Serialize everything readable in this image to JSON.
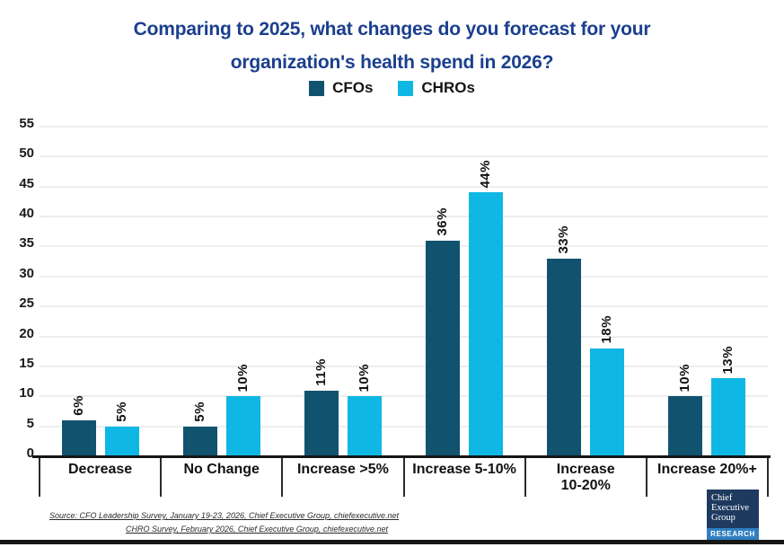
{
  "title": {
    "line1": "Comparing to 2025, what changes do you forecast for your",
    "line2": "organization's health spend in 2026?"
  },
  "chart_data": {
    "type": "bar",
    "title": "Comparing to 2025, what changes do you forecast for your organization's health spend in 2026?",
    "categories": [
      "Decrease",
      "No Change",
      "Increase >5%",
      "Increase 5-10%",
      "Increase\n10-20%",
      "Increase 20%+"
    ],
    "series": [
      {
        "name": "CFOs",
        "color": "#11536F",
        "values": [
          6,
          5,
          11,
          36,
          33,
          10
        ],
        "labels": [
          "6%",
          "5%",
          "11%",
          "36%",
          "33%",
          "10%"
        ]
      },
      {
        "name": "CHROs",
        "color": "#0FB8E4",
        "values": [
          5,
          10,
          10,
          44,
          18,
          13
        ],
        "labels": [
          "5%",
          "10%",
          "10%",
          "44%",
          "18%",
          "13%"
        ]
      }
    ],
    "ylim": [
      0,
      55
    ],
    "ytick_step": 5,
    "grid": true,
    "legend_position": "top",
    "value_label_rotation": -90
  },
  "source": {
    "line1": "Source: CFO Leadership Survey, January 19-23, 2026, Chief Executive Group, chiefexecutive.net",
    "line2": "CHRO Survey, February 2026, Chief Executive Group, chiefexecutive.net"
  },
  "logo": {
    "line1": "Chief",
    "line2": "Executive",
    "line3": "Group",
    "banner": "RESEARCH"
  },
  "colors": {
    "title": "#1B3F8E",
    "cfo": "#11536F",
    "chro": "#0FB8E4",
    "grid": "#EDEDED",
    "axis": "#151515",
    "logo_bg": "#1E3A5F",
    "logo_banner": "#2F7FC1"
  }
}
